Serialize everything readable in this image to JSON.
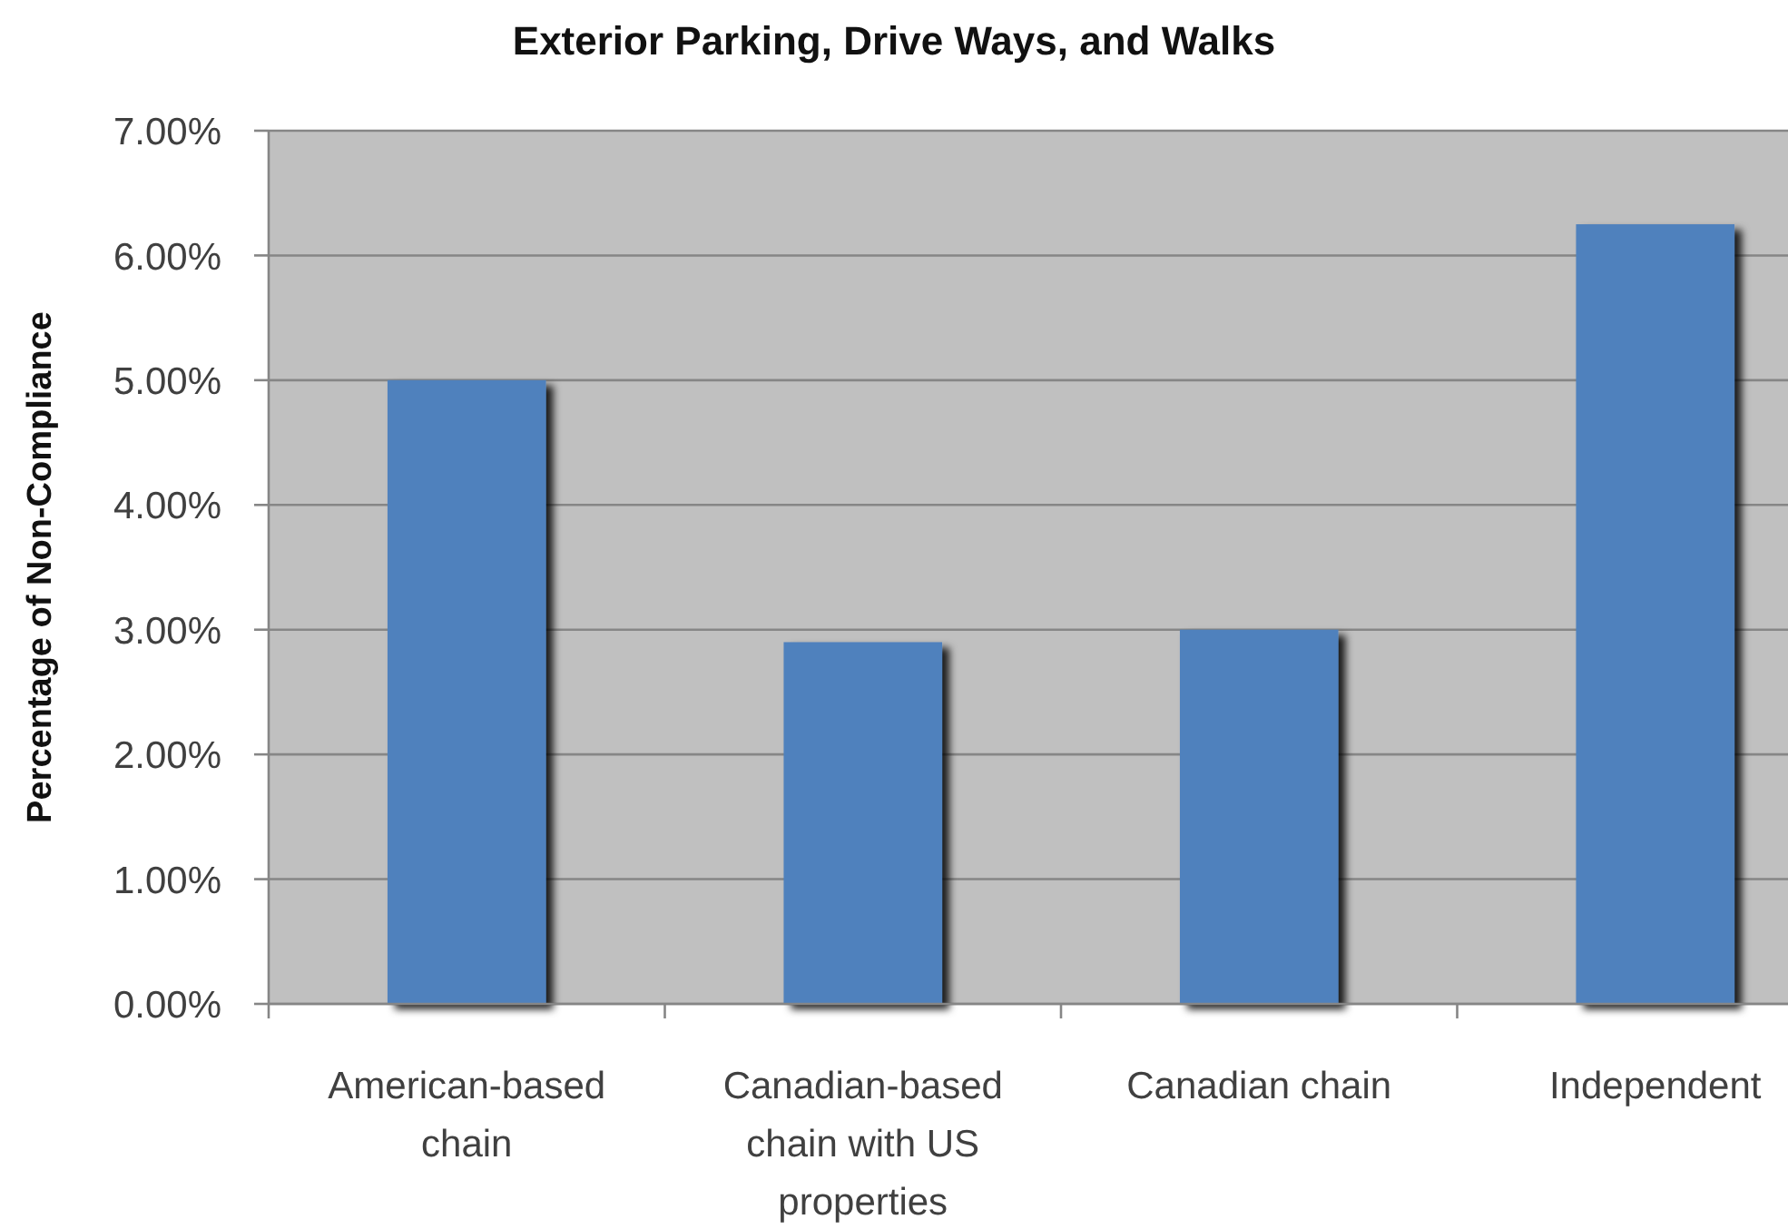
{
  "chart_data": {
    "type": "bar",
    "title": "Exterior Parking, Drive Ways, and Walks",
    "ylabel": "Percentage of Non-Compliance",
    "categories": [
      "American-based chain",
      "Canadian-based chain with US properties",
      "Canadian chain",
      "Independent"
    ],
    "values": [
      5.0,
      2.9,
      3.0,
      6.25
    ],
    "color": "#4f81bd",
    "ylim": [
      0,
      7
    ],
    "yticks": [
      {
        "value": 0,
        "label": "0.00%"
      },
      {
        "value": 1,
        "label": "1.00%"
      },
      {
        "value": 2,
        "label": "2.00%"
      },
      {
        "value": 3,
        "label": "3.00%"
      },
      {
        "value": 4,
        "label": "4.00%"
      },
      {
        "value": 5,
        "label": "5.00%"
      },
      {
        "value": 6,
        "label": "6.00%"
      },
      {
        "value": 7,
        "label": "7.00%"
      }
    ],
    "grid": "y"
  }
}
